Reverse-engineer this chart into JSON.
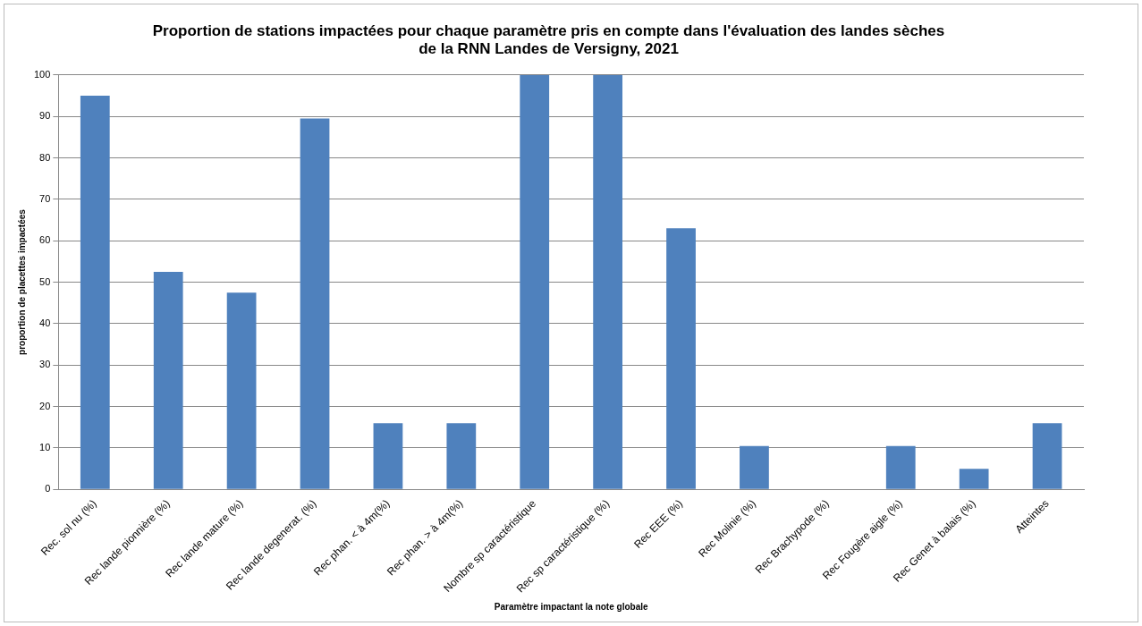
{
  "chart_data": {
    "type": "bar",
    "title": "Proportion de stations impactées pour chaque paramètre pris en compte dans l'évaluation des landes sèches\nde la RNN Landes de Versigny, 2021",
    "xlabel": "Paramètre impactant la note globale",
    "ylabel": "proportion de placettes impactées",
    "categories": [
      "Rec. sol nu (%)",
      "Rec lande pionnière (%)",
      "Rec lande mature (%)",
      "Rec lande degenerat. (%)",
      "Rec phan. < à 4m(%)",
      "Rec phan. > à 4m(%)",
      "Nombre sp caractéristique",
      "Rec sp caractéristique (%)",
      "Rec EEE (%)",
      "Rec Molinie (%)",
      "Rec Brachypode (%)",
      "Rec Fougère aigle (%)",
      "Rec Genet à balais (%)",
      "Atteintes"
    ],
    "values": [
      95,
      52.5,
      47.5,
      89.5,
      16,
      16,
      100,
      100,
      63,
      10.5,
      0,
      10.5,
      5,
      16
    ],
    "color": "#4f81bd",
    "ylim": [
      0,
      100
    ],
    "yticks": [
      0,
      10,
      20,
      30,
      40,
      50,
      60,
      70,
      80,
      90,
      100
    ],
    "grid": "y",
    "legend": false
  }
}
